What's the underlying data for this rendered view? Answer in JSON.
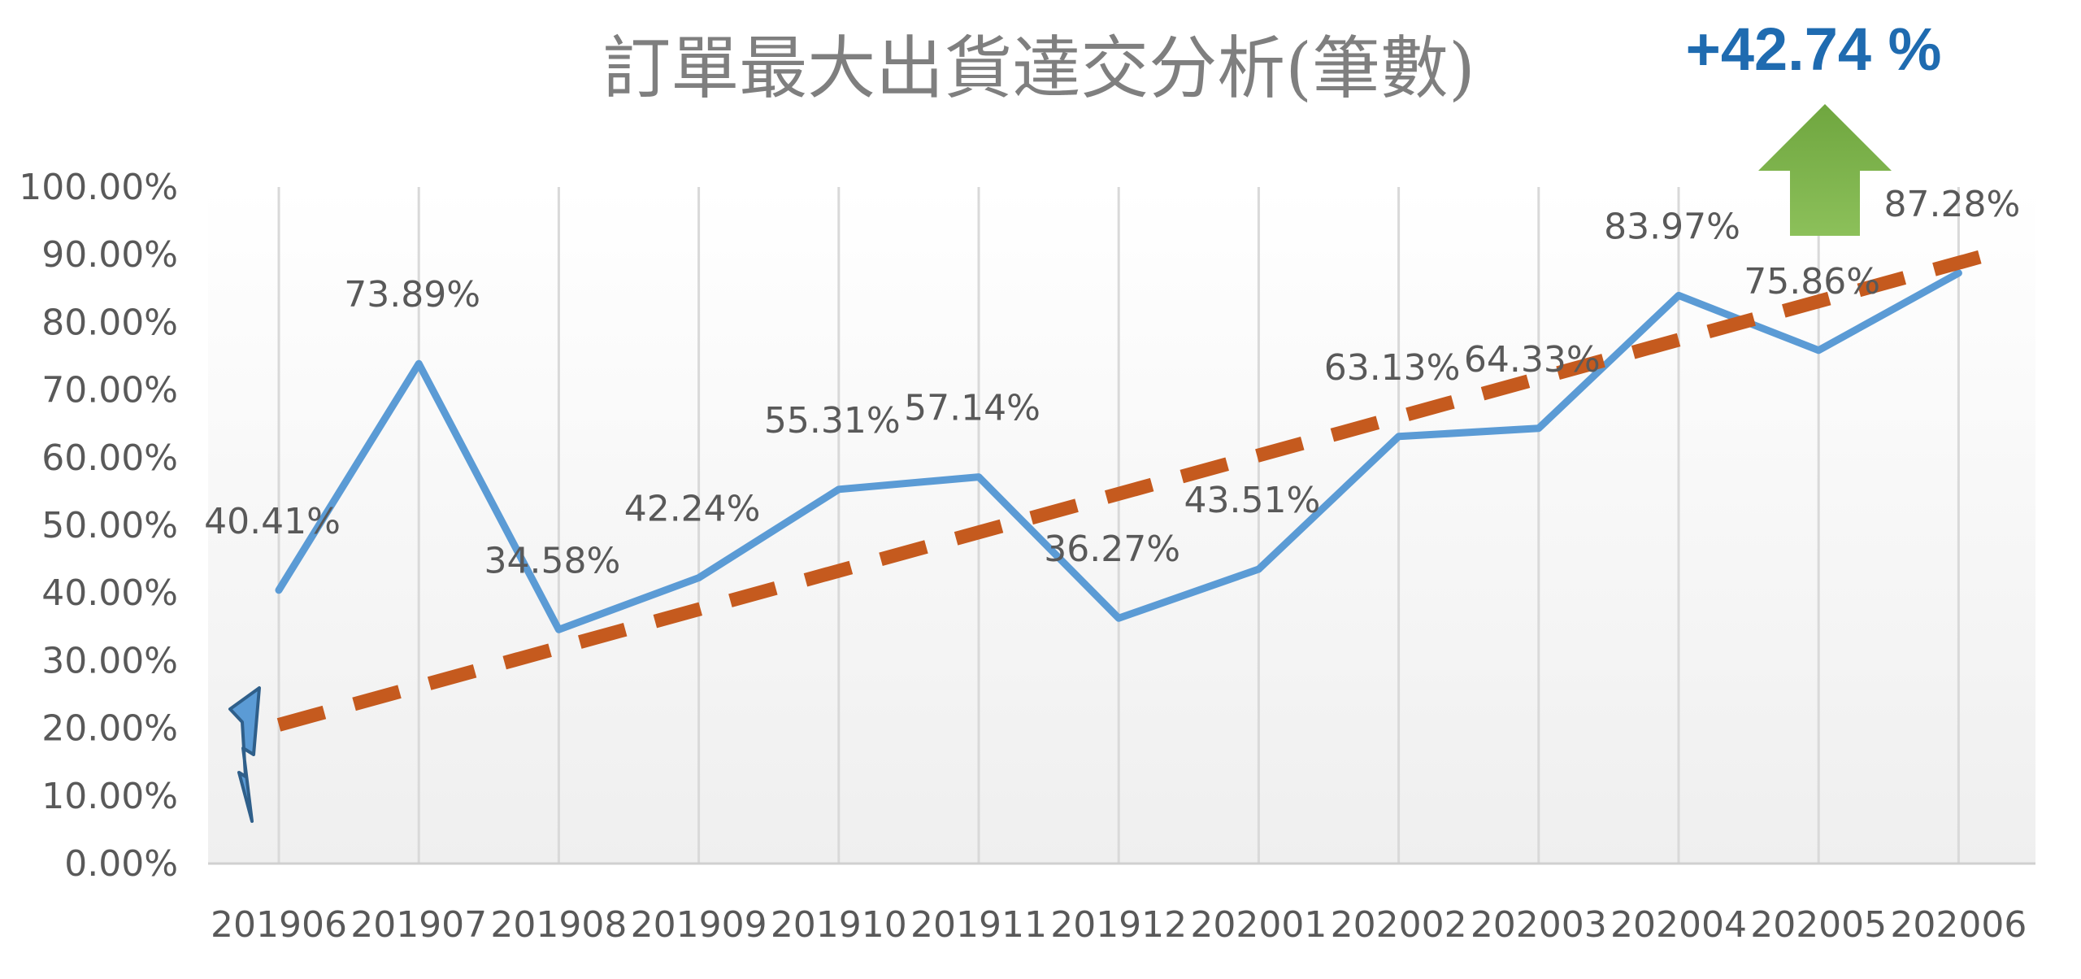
{
  "chart_data": {
    "type": "line",
    "title": "訂單最大出貨達交分析(筆數)",
    "categories": [
      "201906",
      "201907",
      "201908",
      "201909",
      "201910",
      "201911",
      "201912",
      "202001",
      "202002",
      "202003",
      "202004",
      "202005",
      "202006"
    ],
    "series": [
      {
        "values": [
          40.41,
          73.89,
          34.58,
          42.24,
          55.31,
          57.14,
          36.27,
          43.51,
          63.13,
          64.33,
          83.97,
          75.86,
          87.28
        ]
      }
    ],
    "data_labels": [
      "40.41%",
      "73.89%",
      "34.58%",
      "42.24%",
      "55.31%",
      "57.14%",
      "36.27%",
      "43.51%",
      "63.13%",
      "64.33%",
      "83.97%",
      "75.86%",
      "87.28%"
    ],
    "y_ticks": [
      "0.00%",
      "10.00%",
      "20.00%",
      "30.00%",
      "40.00%",
      "50.00%",
      "60.00%",
      "70.00%",
      "80.00%",
      "90.00%",
      "100.00%"
    ],
    "ylim": [
      0,
      100
    ],
    "trendline": {
      "style": "dashed",
      "start": [
        0,
        20.5
      ],
      "end": [
        12.3,
        90.5
      ]
    },
    "grid": "vertical",
    "annotation": "+42.74 %"
  },
  "colors": {
    "line": "#5B9BD5",
    "trend": "#C55A1E",
    "arrow": "#70AD47",
    "annotation": "#1F6BB0",
    "axis_text": "#595959",
    "title": "#7F7F7F",
    "grid": "#D9D9D9"
  },
  "icons": {
    "bolt": "lightning-icon",
    "arrow": "up-arrow-icon"
  }
}
